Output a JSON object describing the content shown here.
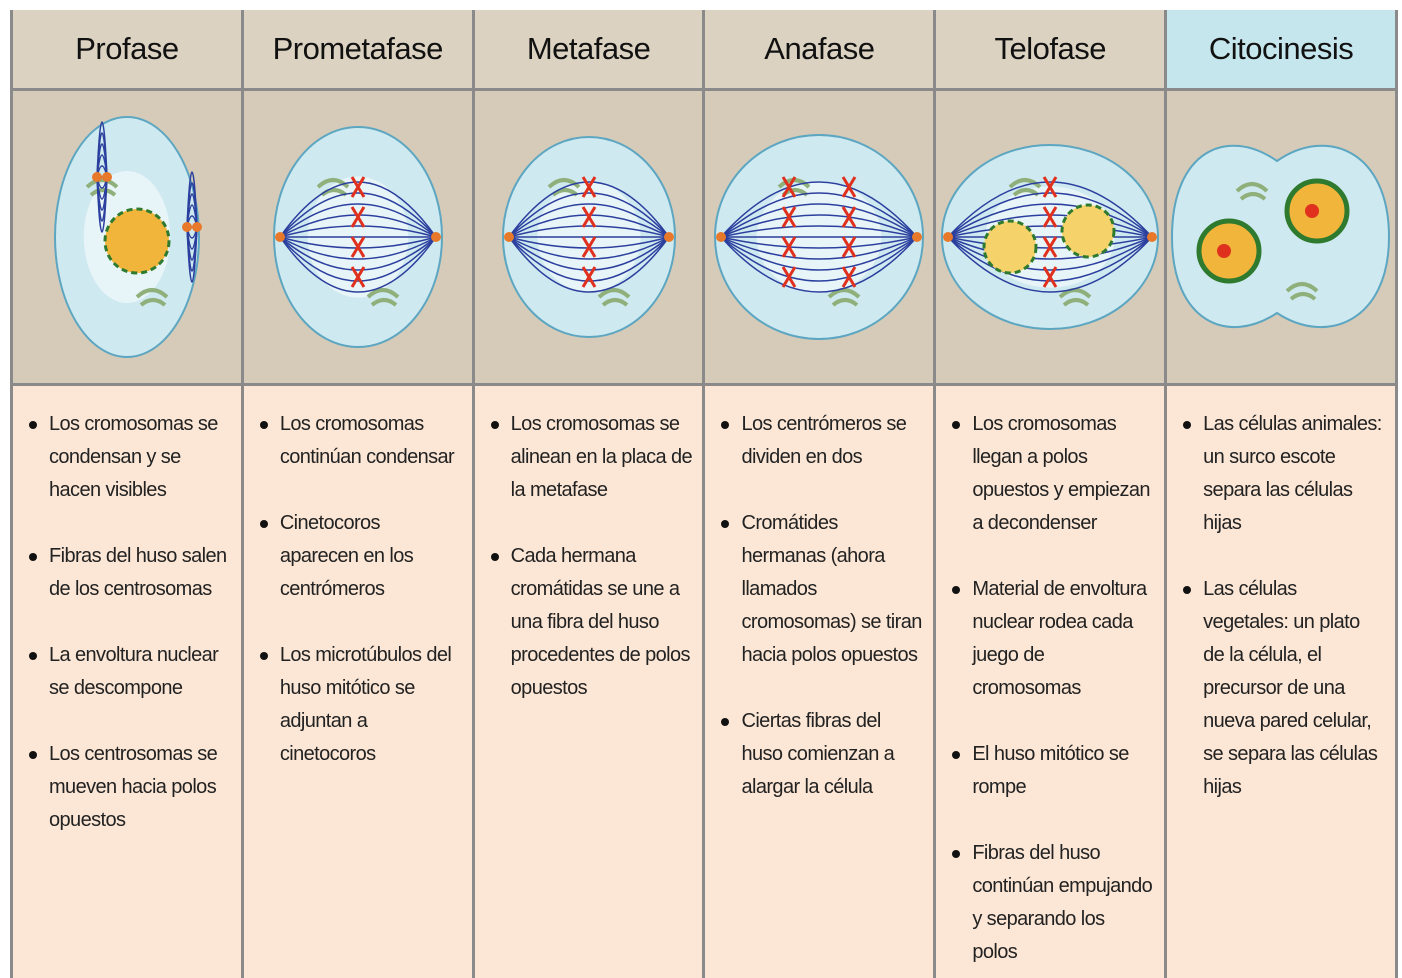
{
  "columns": [
    {
      "title": "Profase",
      "bullets": [
        "Los cromosomas se condensan y se hacen visibles",
        "Fibras del huso salen de los centrosomas",
        "La envoltura nuclear se descompone",
        "Los centrosomas se mueven hacia polos opuestos"
      ]
    },
    {
      "title": "Prometafase",
      "bullets": [
        "Los cromosomas continúan condensar",
        "Cinetocoros aparecen en los centrómeros",
        "Los microtúbulos del huso mitótico se adjuntan a cinetocoros"
      ]
    },
    {
      "title": "Metafase",
      "bullets": [
        "Los cromosomas se alinean en la placa de la metafase",
        "Cada hermana cromátidas se une a una fibra del huso procedentes de polos opuestos"
      ]
    },
    {
      "title": "Anafase",
      "bullets": [
        "Los centrómeros se dividen en dos",
        "Cromátides hermanas (ahora llamados cromosomas) se tiran hacia polos opuestos",
        "Ciertas fibras del huso comienzan a alargar la célula"
      ]
    },
    {
      "title": "Telofase",
      "bullets": [
        "Los cromosomas llegan a polos opuestos y empiezan a decondenser",
        "Material de envoltura nuclear rodea cada juego de cromosomas",
        "El huso mitótico se rompe",
        "Fibras del huso continúan empujando y separando los polos"
      ]
    },
    {
      "title": "Citocinesis",
      "bullets": [
        "Las células animales: un surco escote separa las células hijas",
        "Las células vegetales: un plato de la célula, el precursor de una nueva pared celular, se separa las células hijas"
      ]
    }
  ]
}
